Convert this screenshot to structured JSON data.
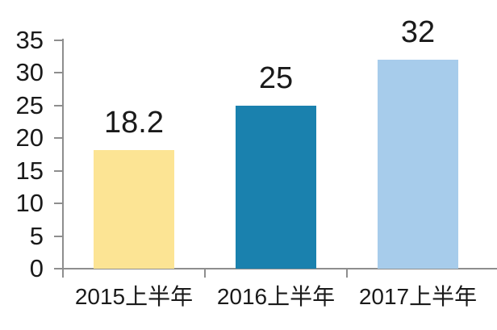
{
  "chart_data": {
    "type": "bar",
    "title": "",
    "xlabel": "",
    "ylabel": "",
    "categories": [
      "2015上半年",
      "2016上半年",
      "2017上半年"
    ],
    "values": [
      18.2,
      25,
      32
    ],
    "data_labels": [
      "18.2",
      "25",
      "32"
    ],
    "bar_colors": [
      "#FCE494",
      "#1A81AE",
      "#A7CCEB"
    ],
    "y_ticks": [
      0,
      5,
      10,
      15,
      20,
      25,
      30,
      35
    ],
    "y_tick_labels": [
      "0",
      "5",
      "10",
      "15",
      "20",
      "25",
      "30",
      "35"
    ],
    "ylim": [
      0,
      35
    ],
    "grid": false,
    "legend_position": "none",
    "colors": {
      "axis": "#8E8E8E",
      "text": "#1A1A1A",
      "background": "#FFFFFF"
    }
  }
}
